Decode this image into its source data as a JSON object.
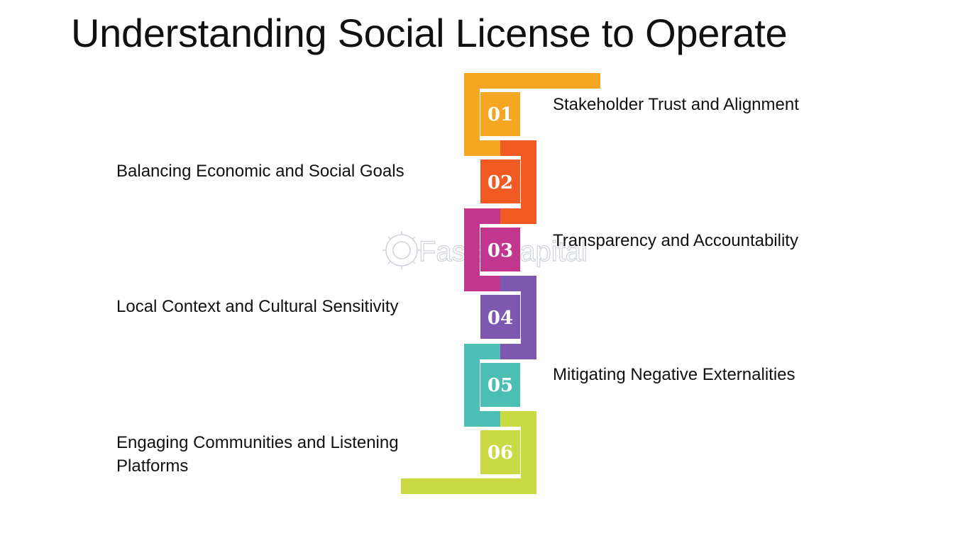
{
  "title": "Understanding Social License to Operate",
  "watermark": "FasterCapital",
  "steps": [
    {
      "number": "01",
      "label": "Stakeholder Trust and Alignment",
      "color": "#F5A623"
    },
    {
      "number": "02",
      "label": "Balancing Economic and Social Goals",
      "color": "#F15A22"
    },
    {
      "number": "03",
      "label": "Transparency and Accountability",
      "color": "#C2368E"
    },
    {
      "number": "04",
      "label": "Local Context and Cultural Sensitivity",
      "color": "#7E57B0"
    },
    {
      "number": "05",
      "label": "Mitigating Negative Externalities",
      "color": "#4CBFB4"
    },
    {
      "number": "06",
      "label": "Engaging Communities and Listening Platforms",
      "color": "#C9DA44"
    }
  ]
}
